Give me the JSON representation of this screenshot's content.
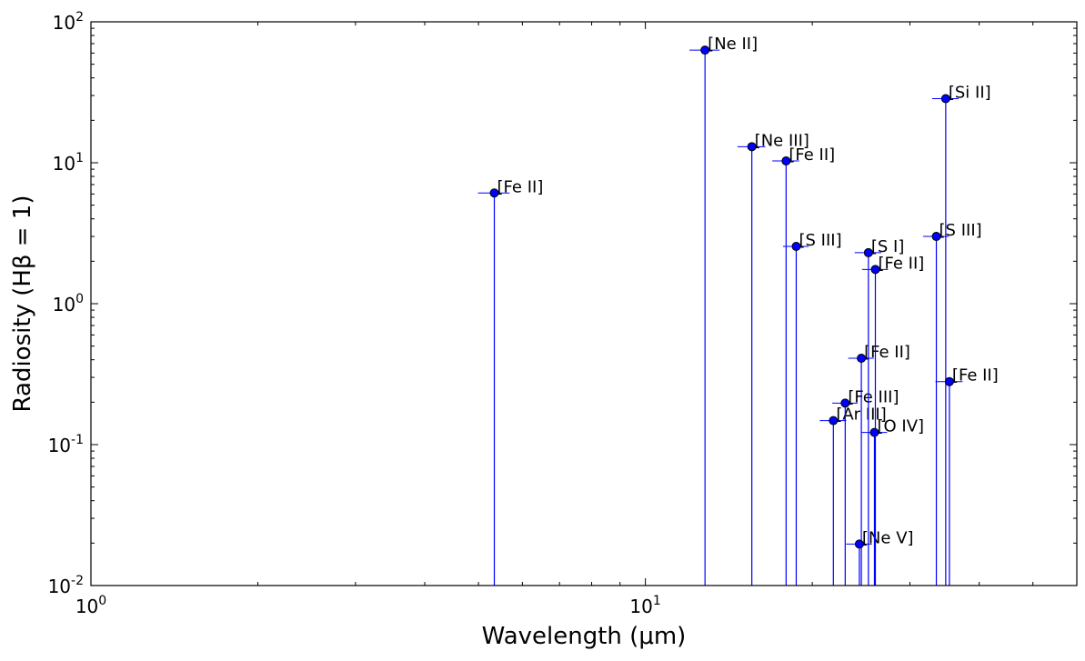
{
  "chart_data": {
    "type": "scatter",
    "title": "",
    "xlabel": "Wavelength (μm)",
    "ylabel": "Radiosity (Hβ = 1)",
    "xscale": "log",
    "yscale": "log",
    "xlim": [
      1,
      60
    ],
    "ylim": [
      0.01,
      100
    ],
    "grid": false,
    "legend": "none",
    "marker_color": "#0000ff",
    "stem_color": "#0000ff",
    "xerr_color": "#0000ff",
    "x_ticks": [
      {
        "base": "10",
        "exp": "0",
        "value": 1
      },
      {
        "base": "10",
        "exp": "1",
        "value": 10
      }
    ],
    "y_ticks": [
      {
        "base": "10",
        "exp": "-2",
        "value": 0.01
      },
      {
        "base": "10",
        "exp": "-1",
        "value": 0.1
      },
      {
        "base": "10",
        "exp": "0",
        "value": 1
      },
      {
        "base": "10",
        "exp": "1",
        "value": 10
      },
      {
        "base": "10",
        "exp": "2",
        "value": 100
      }
    ],
    "points": [
      {
        "label": "[Fe II]",
        "x": 5.34,
        "y": 6.1,
        "xerr": 0.35
      },
      {
        "label": "[Ne II]",
        "x": 12.81,
        "y": 63.0,
        "xerr": 0.8
      },
      {
        "label": "[Ne III]",
        "x": 15.56,
        "y": 13.0,
        "xerr": 0.9
      },
      {
        "label": "[Fe II]",
        "x": 17.94,
        "y": 10.3,
        "xerr": 1.0
      },
      {
        "label": "[S III]",
        "x": 18.71,
        "y": 2.55,
        "xerr": 1.0
      },
      {
        "label": "[Ar III]",
        "x": 21.83,
        "y": 0.148,
        "xerr": 1.2
      },
      {
        "label": "[Fe III]",
        "x": 22.93,
        "y": 0.197,
        "xerr": 1.2
      },
      {
        "label": "[Fe II]",
        "x": 24.52,
        "y": 0.41,
        "xerr": 1.3
      },
      {
        "label": "[Ne V]",
        "x": 24.32,
        "y": 0.0197,
        "xerr": 1.3
      },
      {
        "label": "[S I]",
        "x": 25.25,
        "y": 2.3,
        "xerr": 1.4
      },
      {
        "label": "[O IV]",
        "x": 25.89,
        "y": 0.122,
        "xerr": 1.4
      },
      {
        "label": "[Fe II]",
        "x": 25.99,
        "y": 1.75,
        "xerr": 1.4
      },
      {
        "label": "[S III]",
        "x": 33.48,
        "y": 3.0,
        "xerr": 1.8
      },
      {
        "label": "[Si II]",
        "x": 34.81,
        "y": 28.5,
        "xerr": 1.9
      },
      {
        "label": "[Fe II]",
        "x": 35.35,
        "y": 0.28,
        "xerr": 2.0
      }
    ]
  }
}
